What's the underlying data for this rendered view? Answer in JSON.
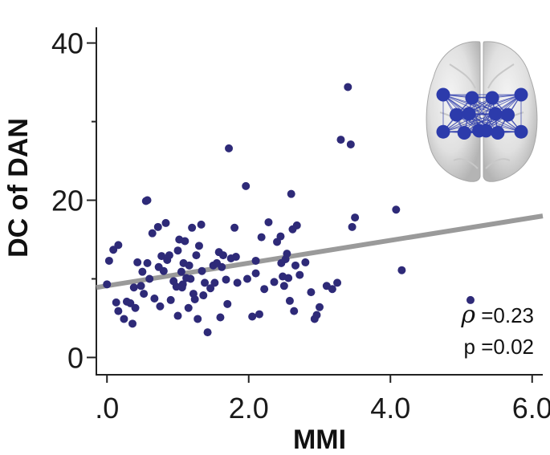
{
  "chart_data": {
    "type": "scatter",
    "title": "",
    "xlabel": "MMI",
    "ylabel": "DC of DAN",
    "xlim": [
      -0.15,
      6.15
    ],
    "ylim": [
      -2.2,
      42
    ],
    "x_ticks": [
      0,
      2,
      4,
      6
    ],
    "x_tick_labels": [
      ".0",
      "2.0",
      "4.0",
      "6.0"
    ],
    "y_ticks": [
      0,
      20,
      40
    ],
    "y_tick_labels": [
      "0",
      "20",
      "40"
    ],
    "y_minor_ticks": [
      10,
      30
    ],
    "grid": false,
    "point_color": "#2e2a78",
    "fit_line_color": "#9a9a9a",
    "fit_line": {
      "x": [
        -0.15,
        6.15
      ],
      "y": [
        8.9,
        18.0
      ]
    },
    "annotations": {
      "rho_symbol": "ρ",
      "rho_value": " =0.23",
      "p_text": "p =0.02"
    },
    "brain_inset": {
      "node_color": "#2c3bab",
      "edge_color": "#2c3bab",
      "nodes": [
        {
          "id": 1,
          "x": 0.0,
          "y": 0.0
        },
        {
          "id": 2,
          "x": 0.37,
          "y": 0.06
        },
        {
          "id": 3,
          "x": 0.63,
          "y": 0.06
        },
        {
          "id": 4,
          "x": 1.0,
          "y": 0.0
        },
        {
          "id": 5,
          "x": 0.17,
          "y": 0.38
        },
        {
          "id": 6,
          "x": 0.33,
          "y": 0.36
        },
        {
          "id": 7,
          "x": 0.67,
          "y": 0.36
        },
        {
          "id": 8,
          "x": 0.83,
          "y": 0.38
        },
        {
          "id": 9,
          "x": 0.0,
          "y": 0.7
        },
        {
          "id": 10,
          "x": 0.27,
          "y": 0.72
        },
        {
          "id": 11,
          "x": 0.46,
          "y": 0.68
        },
        {
          "id": 12,
          "x": 0.55,
          "y": 0.68
        },
        {
          "id": 13,
          "x": 0.7,
          "y": 0.72
        },
        {
          "id": 14,
          "x": 1.0,
          "y": 0.7
        }
      ]
    },
    "series": [
      {
        "points": [
          [
            0.0,
            9.3
          ],
          [
            0.03,
            12.3
          ],
          [
            0.09,
            13.7
          ],
          [
            0.13,
            7.0
          ],
          [
            0.16,
            14.3
          ],
          [
            0.16,
            5.9
          ],
          [
            0.24,
            4.9
          ],
          [
            0.28,
            7.1
          ],
          [
            0.33,
            6.9
          ],
          [
            0.36,
            4.3
          ],
          [
            0.38,
            8.9
          ],
          [
            0.4,
            6.3
          ],
          [
            0.43,
            12.1
          ],
          [
            0.48,
            9.1
          ],
          [
            0.5,
            10.9
          ],
          [
            0.52,
            8.1
          ],
          [
            0.55,
            19.9
          ],
          [
            0.57,
            20.0
          ],
          [
            0.57,
            12.0
          ],
          [
            0.6,
            10.0
          ],
          [
            0.64,
            15.8
          ],
          [
            0.67,
            7.5
          ],
          [
            0.72,
            16.6
          ],
          [
            0.73,
            11.5
          ],
          [
            0.75,
            6.5
          ],
          [
            0.77,
            12.9
          ],
          [
            0.8,
            11.0
          ],
          [
            0.83,
            17.1
          ],
          [
            0.85,
            12.4
          ],
          [
            0.88,
            13.0
          ],
          [
            0.9,
            7.3
          ],
          [
            0.94,
            9.7
          ],
          [
            0.98,
            9.0
          ],
          [
            1.0,
            13.6
          ],
          [
            1.0,
            5.3
          ],
          [
            1.02,
            15.0
          ],
          [
            1.05,
            10.9
          ],
          [
            1.06,
            8.9
          ],
          [
            1.07,
            9.3
          ],
          [
            1.08,
            12.0
          ],
          [
            1.1,
            14.8
          ],
          [
            1.12,
            10.1
          ],
          [
            1.15,
            6.3
          ],
          [
            1.16,
            11.7
          ],
          [
            1.18,
            10.0
          ],
          [
            1.2,
            16.5
          ],
          [
            1.22,
            8.1
          ],
          [
            1.24,
            7.4
          ],
          [
            1.26,
            13.0
          ],
          [
            1.28,
            4.9
          ],
          [
            1.3,
            14.2
          ],
          [
            1.33,
            16.9
          ],
          [
            1.34,
            11.0
          ],
          [
            1.36,
            7.9
          ],
          [
            1.38,
            9.5
          ],
          [
            1.42,
            3.2
          ],
          [
            1.46,
            8.8
          ],
          [
            1.5,
            11.7
          ],
          [
            1.52,
            9.5
          ],
          [
            1.55,
            12.0
          ],
          [
            1.58,
            13.4
          ],
          [
            1.6,
            5.1
          ],
          [
            1.62,
            11.5
          ],
          [
            1.64,
            13.0
          ],
          [
            1.68,
            9.9
          ],
          [
            1.7,
            6.8
          ],
          [
            1.72,
            26.6
          ],
          [
            1.75,
            12.6
          ],
          [
            1.8,
            16.5
          ],
          [
            1.82,
            12.8
          ],
          [
            1.84,
            9.5
          ],
          [
            1.96,
            21.8
          ],
          [
            1.98,
            10.0
          ],
          [
            2.05,
            5.2
          ],
          [
            2.1,
            12.3
          ],
          [
            2.1,
            10.7
          ],
          [
            2.15,
            5.5
          ],
          [
            2.18,
            15.3
          ],
          [
            2.22,
            8.7
          ],
          [
            2.28,
            17.2
          ],
          [
            2.36,
            9.6
          ],
          [
            2.4,
            14.7
          ],
          [
            2.45,
            15.4
          ],
          [
            2.46,
            12.0
          ],
          [
            2.48,
            10.3
          ],
          [
            2.5,
            9.1
          ],
          [
            2.52,
            12.5
          ],
          [
            2.54,
            13.2
          ],
          [
            2.56,
            10.1
          ],
          [
            2.58,
            7.2
          ],
          [
            2.6,
            20.8
          ],
          [
            2.62,
            16.3
          ],
          [
            2.64,
            5.9
          ],
          [
            2.66,
            11.7
          ],
          [
            2.68,
            16.8
          ],
          [
            2.72,
            10.5
          ],
          [
            2.8,
            12.1
          ],
          [
            2.88,
            8.3
          ],
          [
            2.93,
            4.9
          ],
          [
            2.96,
            5.4
          ],
          [
            3.0,
            6.4
          ],
          [
            3.1,
            9.1
          ],
          [
            3.18,
            8.7
          ],
          [
            3.25,
            9.5
          ],
          [
            3.3,
            27.7
          ],
          [
            3.4,
            34.4
          ],
          [
            3.44,
            27.1
          ],
          [
            3.46,
            16.6
          ],
          [
            3.5,
            17.8
          ],
          [
            4.08,
            18.8
          ],
          [
            4.16,
            11.1
          ],
          [
            5.13,
            7.3
          ]
        ]
      }
    ]
  }
}
